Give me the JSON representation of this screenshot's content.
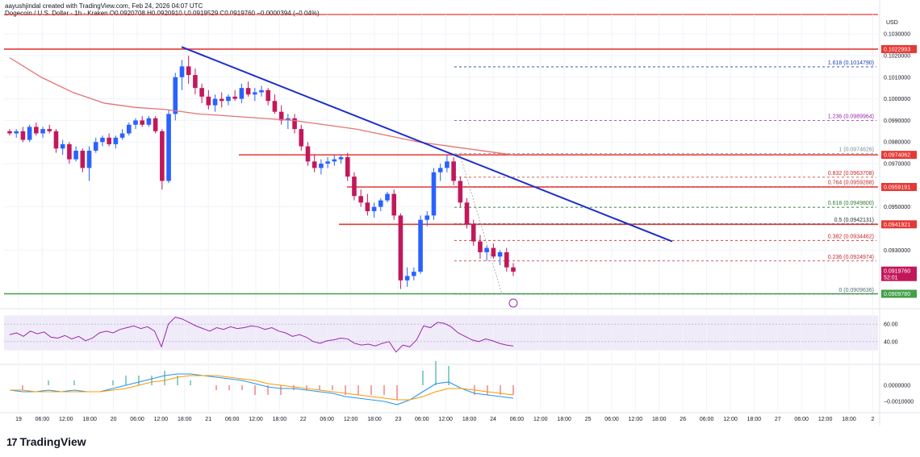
{
  "header": {
    "author_line": "aayushjindal created with TradingView.com, Feb 24, 2026 04:07 UTC",
    "symbol_line": "Dogecoin / U.S. Dollar · 1h · Kraken",
    "ohlc": "O0.0920708 H0.0920910 L0.0919529 C0.0919760 −0.0000394 (−0.04%)"
  },
  "logo": {
    "name": "TradingView",
    "icon": "tradingview-logo-icon"
  },
  "colors": {
    "up": "#2962ff",
    "down": "#c2185b",
    "resistance": "#e53935",
    "support": "#43a047",
    "trend": "#1e2fc9",
    "ma": "#e57373",
    "rsi": "#9c27b0",
    "macd": "#2196f3",
    "signal": "#ff9800"
  },
  "chart_data": [
    {
      "type": "candlestick",
      "currency_label": "USD",
      "ylim": [
        0.0904,
        0.1039
      ],
      "y_ticks": [
        "0.1030000",
        "0.1020000",
        "0.1010000",
        "0.1000000",
        "0.0990000",
        "0.0980000",
        "0.0970000",
        "0.0950000",
        "0.0930000"
      ],
      "x_ticks": [
        "19",
        "06:00",
        "12:00",
        "18:00",
        "20",
        "06:00",
        "12:00",
        "18:00",
        "21",
        "06:00",
        "12:00",
        "18:00",
        "22",
        "06:00",
        "12:00",
        "18:00",
        "23",
        "06:00",
        "12:00",
        "18:00",
        "24",
        "06:00",
        "12:00",
        "18:00",
        "25",
        "06:00",
        "12:00",
        "18:00",
        "26",
        "06:00",
        "12:00",
        "18:00",
        "27",
        "06:00",
        "12:00",
        "18:00",
        "2"
      ],
      "price_levels": [
        {
          "price": 0.1022993,
          "label": "0.1022993",
          "color": "#e53935"
        },
        {
          "price": 0.0974062,
          "label": "0.0974062",
          "color": "#e53935"
        },
        {
          "price": 0.0959191,
          "label": "0.0959191",
          "color": "#e53935"
        },
        {
          "price": 0.0941921,
          "label": "0.0941921",
          "color": "#e53935"
        },
        {
          "price": 0.090978,
          "label": "0.0909780",
          "color": "#43a047"
        }
      ],
      "current_price": {
        "label": "0.0919760",
        "countdown": "52:01"
      },
      "fib_levels": [
        {
          "label": "1.618 (0.1014790)",
          "price": 0.101479,
          "color": "#1e40af"
        },
        {
          "label": "1.236 (0.0989964)",
          "price": 0.0989964,
          "color": "#9c27b0"
        },
        {
          "label": "1 (0.0974626)",
          "price": 0.0974626,
          "color": "#78909c"
        },
        {
          "label": "0.832 (0.0963708)",
          "price": 0.0963708,
          "color": "#c62828"
        },
        {
          "label": "0.764 (0.0959288)",
          "price": 0.0959288,
          "color": "#c62828"
        },
        {
          "label": "0.618 (0.0949800)",
          "price": 0.09498,
          "color": "#2e7d32"
        },
        {
          "label": "0.5 (0.0942131)",
          "price": 0.0942131,
          "color": "#263238"
        },
        {
          "label": "0.382 (0.0934462)",
          "price": 0.0934462,
          "color": "#c62828"
        },
        {
          "label": "0.236 (0.0924974)",
          "price": 0.0924974,
          "color": "#c62828"
        },
        {
          "label": "0 (0.0909636)",
          "price": 0.0909636,
          "color": "#546e7a"
        }
      ],
      "trendline": {
        "start_price": 0.1024,
        "end_price": 0.0934
      },
      "ohlc": [
        [
          0.0985,
          0.0986,
          0.0983,
          0.0984
        ],
        [
          0.0984,
          0.0986,
          0.0982,
          0.0985
        ],
        [
          0.0985,
          0.0987,
          0.098,
          0.0981
        ],
        [
          0.0981,
          0.0988,
          0.098,
          0.0987
        ],
        [
          0.0987,
          0.0989,
          0.0983,
          0.0984
        ],
        [
          0.0984,
          0.0987,
          0.0982,
          0.0986
        ],
        [
          0.0986,
          0.0988,
          0.0984,
          0.0985
        ],
        [
          0.0985,
          0.0986,
          0.0975,
          0.0977
        ],
        [
          0.0977,
          0.0981,
          0.0974,
          0.0979
        ],
        [
          0.0979,
          0.098,
          0.097,
          0.0972
        ],
        [
          0.0972,
          0.0978,
          0.0971,
          0.0976
        ],
        [
          0.0976,
          0.0977,
          0.0966,
          0.0968
        ],
        [
          0.0968,
          0.0978,
          0.0962,
          0.0976
        ],
        [
          0.0976,
          0.0982,
          0.0975,
          0.098
        ],
        [
          0.098,
          0.0983,
          0.0978,
          0.0982
        ],
        [
          0.0982,
          0.0984,
          0.0978,
          0.0979
        ],
        [
          0.0979,
          0.0983,
          0.0977,
          0.0982
        ],
        [
          0.0982,
          0.0986,
          0.0981,
          0.0984
        ],
        [
          0.0984,
          0.0989,
          0.0983,
          0.0988
        ],
        [
          0.0988,
          0.0991,
          0.0986,
          0.099
        ],
        [
          0.099,
          0.0992,
          0.0987,
          0.0988
        ],
        [
          0.0988,
          0.0992,
          0.0987,
          0.0991
        ],
        [
          0.0991,
          0.0992,
          0.0984,
          0.0985
        ],
        [
          0.0985,
          0.0986,
          0.0958,
          0.0962
        ],
        [
          0.0962,
          0.0995,
          0.0961,
          0.0993
        ],
        [
          0.0993,
          0.1012,
          0.099,
          0.101
        ],
        [
          0.101,
          0.1018,
          0.1004,
          0.1015
        ],
        [
          0.1015,
          0.102,
          0.1007,
          0.1011
        ],
        [
          0.1011,
          0.1014,
          0.1002,
          0.1005
        ],
        [
          0.1005,
          0.1007,
          0.0998,
          0.1001
        ],
        [
          0.1001,
          0.1004,
          0.0995,
          0.0997
        ],
        [
          0.0997,
          0.1002,
          0.0994,
          0.1
        ],
        [
          0.1,
          0.1003,
          0.0996,
          0.0999
        ],
        [
          0.0999,
          0.1002,
          0.0997,
          0.1001
        ],
        [
          0.1001,
          0.1004,
          0.0999,
          0.1
        ],
        [
          0.1,
          0.1007,
          0.0998,
          0.1005
        ],
        [
          0.1005,
          0.1008,
          0.1001,
          0.1002
        ],
        [
          0.1002,
          0.1005,
          0.0999,
          0.1003
        ],
        [
          0.1003,
          0.1006,
          0.1001,
          0.1004
        ],
        [
          0.1004,
          0.1005,
          0.0997,
          0.0999
        ],
        [
          0.0999,
          0.1002,
          0.0993,
          0.0994
        ],
        [
          0.0994,
          0.0997,
          0.0988,
          0.099
        ],
        [
          0.099,
          0.0993,
          0.0986,
          0.0991
        ],
        [
          0.0991,
          0.0993,
          0.0984,
          0.0986
        ],
        [
          0.0986,
          0.0988,
          0.0976,
          0.0978
        ],
        [
          0.0978,
          0.098,
          0.0969,
          0.0971
        ],
        [
          0.0971,
          0.0974,
          0.0966,
          0.0968
        ],
        [
          0.0968,
          0.0972,
          0.0965,
          0.097
        ],
        [
          0.097,
          0.0973,
          0.0968,
          0.0971
        ],
        [
          0.0971,
          0.0974,
          0.0969,
          0.0972
        ],
        [
          0.0972,
          0.0974,
          0.097,
          0.0973
        ],
        [
          0.0973,
          0.0975,
          0.0962,
          0.0964
        ],
        [
          0.0964,
          0.0966,
          0.0953,
          0.0955
        ],
        [
          0.0955,
          0.0958,
          0.095,
          0.0952
        ],
        [
          0.0952,
          0.0956,
          0.0946,
          0.0948
        ],
        [
          0.0948,
          0.0952,
          0.0945,
          0.095
        ],
        [
          0.095,
          0.0954,
          0.0948,
          0.0953
        ],
        [
          0.0953,
          0.0957,
          0.0952,
          0.0956
        ],
        [
          0.0956,
          0.0958,
          0.0944,
          0.0946
        ],
        [
          0.0946,
          0.0947,
          0.0912,
          0.0916
        ],
        [
          0.0916,
          0.0922,
          0.0913,
          0.0918
        ],
        [
          0.0918,
          0.0922,
          0.0916,
          0.092
        ],
        [
          0.092,
          0.0946,
          0.0919,
          0.0944
        ],
        [
          0.0944,
          0.0948,
          0.0941,
          0.0946
        ],
        [
          0.0946,
          0.0968,
          0.0944,
          0.0966
        ],
        [
          0.0966,
          0.097,
          0.0962,
          0.0968
        ],
        [
          0.0968,
          0.0974,
          0.0966,
          0.0971
        ],
        [
          0.0971,
          0.0973,
          0.096,
          0.0962
        ],
        [
          0.0962,
          0.0964,
          0.095,
          0.0952
        ],
        [
          0.0952,
          0.0954,
          0.094,
          0.0942
        ],
        [
          0.0942,
          0.0944,
          0.0932,
          0.0934
        ],
        [
          0.0934,
          0.0937,
          0.0926,
          0.0929
        ],
        [
          0.0929,
          0.0932,
          0.0925,
          0.0931
        ],
        [
          0.0931,
          0.0933,
          0.0926,
          0.0927
        ],
        [
          0.0927,
          0.093,
          0.0923,
          0.0929
        ],
        [
          0.0929,
          0.0931,
          0.092,
          0.0922
        ],
        [
          0.0922,
          0.0924,
          0.0918,
          0.092
        ]
      ],
      "ma_line": {
        "start_index": 0,
        "values": [
          0.1019,
          0.101,
          0.1003,
          0.0998,
          0.0996,
          0.0995,
          0.0993,
          0.0992,
          0.0991,
          0.099,
          0.0988,
          0.0986,
          0.0983,
          0.098,
          0.0978,
          0.0976,
          0.0974
        ]
      }
    },
    {
      "type": "line",
      "name": "rsi",
      "ylim": [
        25,
        75
      ],
      "y_ticks": [
        "60.00",
        "40.00"
      ],
      "band": [
        30,
        70
      ],
      "values": [
        48,
        50,
        46,
        52,
        49,
        51,
        45,
        44,
        47,
        43,
        46,
        41,
        44,
        50,
        52,
        50,
        54,
        56,
        58,
        55,
        57,
        52,
        34,
        60,
        68,
        66,
        62,
        58,
        55,
        52,
        56,
        54,
        57,
        55,
        56,
        58,
        57,
        54,
        56,
        52,
        50,
        46,
        48,
        45,
        40,
        38,
        41,
        42,
        44,
        43,
        38,
        36,
        37,
        35,
        38,
        40,
        28,
        36,
        34,
        42,
        58,
        56,
        62,
        61,
        57,
        50,
        46,
        42,
        40,
        43,
        41,
        38,
        36,
        35
      ]
    },
    {
      "type": "line",
      "name": "macd",
      "ylim": [
        -0.0015,
        0.0011
      ],
      "y_ticks": [
        "0.0000000",
        "−0.0010000"
      ],
      "macd": [
        -0.0003,
        -0.0004,
        -0.0004,
        -0.0003,
        -0.0004,
        -0.0003,
        -0.0004,
        -0.0004,
        -0.0002,
        0.0,
        0.0002,
        0.0004,
        0.0006,
        0.0007,
        0.0007,
        0.0006,
        0.0005,
        0.0004,
        0.0003,
        0.0001,
        -0.0001,
        -0.0002,
        -0.0002,
        -0.0003,
        -0.0004,
        -0.0005,
        -0.0007,
        -0.0008,
        -0.0009,
        -0.001,
        -0.0012,
        -0.0009,
        -0.0004,
        0.0001,
        0.0002,
        -0.0002,
        -0.0005,
        -0.0006,
        -0.0007,
        -0.0008
      ],
      "signal": [
        -0.0003,
        -0.0003,
        -0.0004,
        -0.0004,
        -0.0004,
        -0.0004,
        -0.0004,
        -0.0004,
        -0.0003,
        -0.0002,
        0.0,
        0.0002,
        0.0003,
        0.0005,
        0.0006,
        0.0006,
        0.0006,
        0.0005,
        0.0004,
        0.0003,
        0.0001,
        0.0,
        -0.0001,
        -0.0002,
        -0.0003,
        -0.0004,
        -0.0005,
        -0.0006,
        -0.0007,
        -0.0008,
        -0.0009,
        -0.0009,
        -0.0007,
        -0.0004,
        -0.0002,
        -0.0002,
        -0.0003,
        -0.0004,
        -0.0005,
        -0.0006
      ]
    }
  ]
}
